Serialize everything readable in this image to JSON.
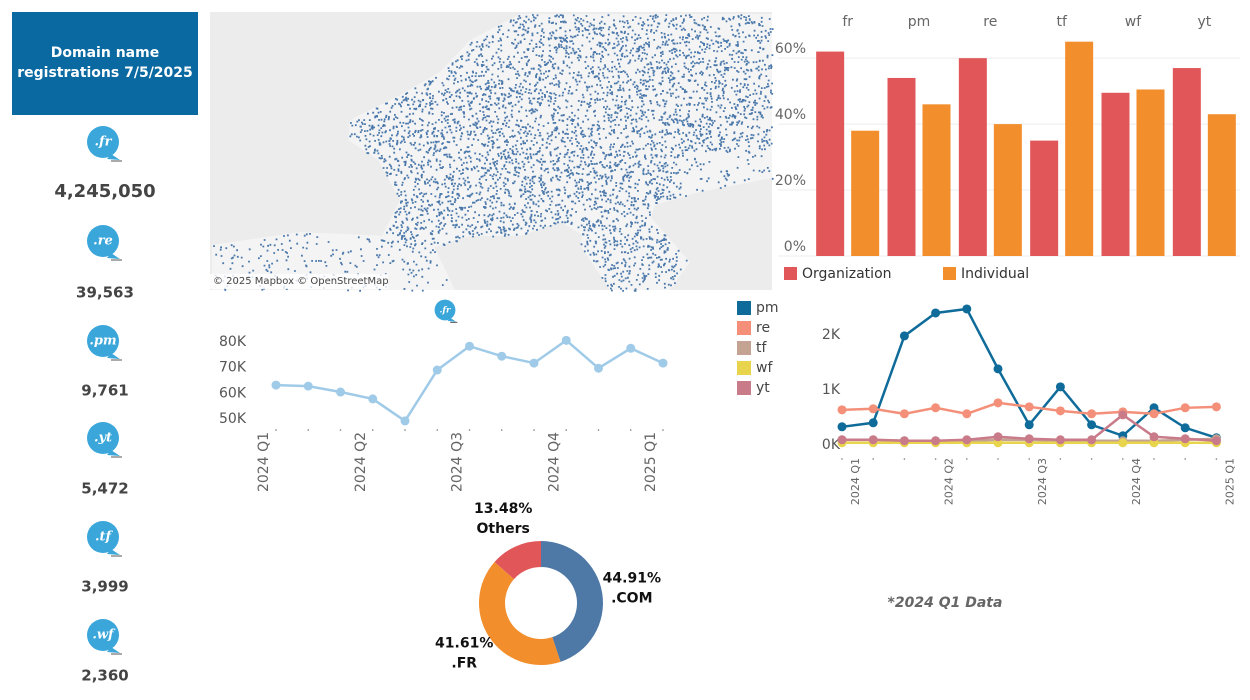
{
  "header": {
    "title_lines": [
      "Domain name",
      "registrations  7/5/2025"
    ]
  },
  "sidebar": [
    {
      "icon": ".fr",
      "count": "4,245,050"
    },
    {
      "icon": ".re",
      "count": "39,563"
    },
    {
      "icon": ".pm",
      "count": "9,761"
    },
    {
      "icon": ".yt",
      "count": "5,472"
    },
    {
      "icon": ".tf",
      "count": "3,999"
    },
    {
      "icon": ".wf",
      "count": "2,360"
    }
  ],
  "map": {
    "attribution": "© 2025 Mapbox © OpenStreetMap"
  },
  "caption": "*2024 Q1 Data",
  "chart_data": [
    {
      "type": "bar",
      "categories": [
        "fr",
        "pm",
        "re",
        "tf",
        "wf",
        "yt"
      ],
      "series": [
        {
          "name": "Organization",
          "color": "#e15759",
          "values": [
            62,
            54,
            60,
            35,
            49.5,
            57
          ]
        },
        {
          "name": "Individual",
          "color": "#f28e2b",
          "values": [
            38,
            46,
            40,
            65,
            50.5,
            43
          ]
        }
      ],
      "ylim": [
        0,
        74
      ],
      "yticks": [
        {
          "value": 0,
          "label": "0%"
        },
        {
          "value": 20,
          "label": "20%"
        },
        {
          "value": 40,
          "label": "40%"
        },
        {
          "value": 60,
          "label": "60%"
        }
      ],
      "grid": true,
      "legend": "bottom"
    },
    {
      "type": "line",
      "title_icon": ".fr",
      "categories": [
        "2024 Q1",
        null,
        null,
        "2024 Q2",
        null,
        null,
        "2024 Q3",
        null,
        null,
        "2024 Q4",
        null,
        null,
        "2025 Q1"
      ],
      "values": [
        63200,
        62800,
        60500,
        57800,
        49200,
        69100,
        78400,
        74500,
        71800,
        80700,
        69800,
        77600,
        71800
      ],
      "color": "#a0cbe8",
      "ylim": [
        48000,
        82000
      ],
      "yticks": [
        {
          "value": 50000,
          "label": "50K"
        },
        {
          "value": 60000,
          "label": "60K"
        },
        {
          "value": 70000,
          "label": "70K"
        },
        {
          "value": 80000,
          "label": "80K"
        }
      ],
      "grid": false
    },
    {
      "type": "line",
      "categories": [
        "2024 Q1",
        null,
        null,
        "2024 Q2",
        null,
        null,
        "2024 Q3",
        null,
        null,
        "2024 Q4",
        null,
        null,
        "2025 Q1"
      ],
      "series": [
        {
          "name": "pm",
          "color": "#0f6b99",
          "values": [
            327,
            400,
            1982,
            2400,
            2473,
            1382,
            364,
            1055,
            364,
            164,
            673,
            309,
            127
          ]
        },
        {
          "name": "re",
          "color": "#f4907a",
          "values": [
            636,
            655,
            564,
            673,
            564,
            764,
            691,
            618,
            564,
            600,
            564,
            673,
            691
          ]
        },
        {
          "name": "tf",
          "color": "#c4a392",
          "values": [
            90,
            90,
            73,
            73,
            73,
            90,
            90,
            73,
            73,
            73,
            73,
            90,
            110
          ]
        },
        {
          "name": "wf",
          "color": "#e8d44d",
          "values": [
            36,
            36,
            36,
            36,
            36,
            36,
            36,
            36,
            36,
            36,
            36,
            36,
            36
          ]
        },
        {
          "name": "yt",
          "color": "#c97b8a",
          "values": [
            91,
            91,
            73,
            73,
            91,
            145,
            109,
            91,
            91,
            545,
            145,
            109,
            73
          ]
        }
      ],
      "ylim": [
        -150,
        2600
      ],
      "yticks": [
        {
          "value": 0,
          "label": "0K"
        },
        {
          "value": 1000,
          "label": "1K"
        },
        {
          "value": 2000,
          "label": "2K"
        }
      ],
      "grid": false,
      "legend": "top-left"
    },
    {
      "type": "pie",
      "donut": true,
      "categories": [
        ".COM",
        ".FR",
        "Others"
      ],
      "values": [
        44.91,
        41.61,
        13.48
      ],
      "value_labels": [
        "44.91%",
        "41.61%",
        "13.48%"
      ],
      "colors": [
        "#4e79a7",
        "#f28e2b",
        "#e15759"
      ]
    }
  ]
}
